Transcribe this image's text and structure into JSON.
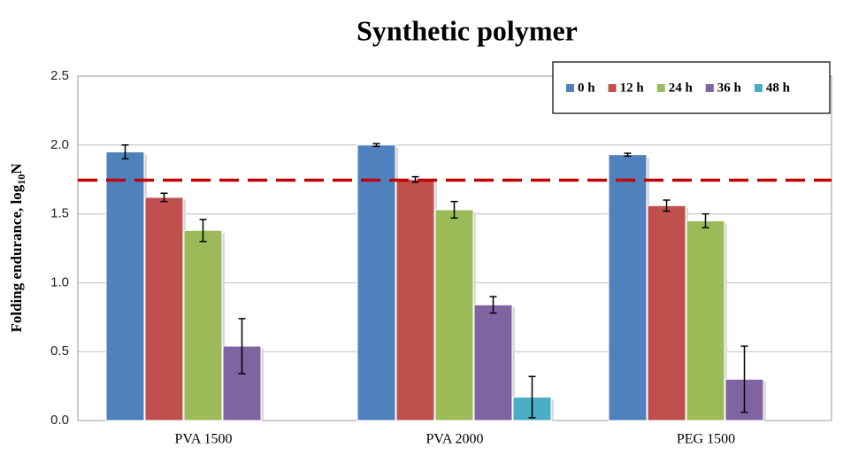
{
  "chart_data": {
    "type": "bar",
    "title": "Synthetic polymer",
    "y_label": [
      "Folding endurance, log",
      "10",
      "N"
    ],
    "categories": [
      "PVA 1500",
      "PVA 2000",
      "PEG 1500"
    ],
    "series": [
      {
        "name": "0 h",
        "color": "#4f81bd",
        "values": [
          1.95,
          2.0,
          1.93
        ],
        "errors": [
          0.05,
          0.01,
          0.01
        ]
      },
      {
        "name": "12 h",
        "color": "#c0504d",
        "values": [
          1.62,
          1.75,
          1.56
        ],
        "errors": [
          0.03,
          0.02,
          0.04
        ]
      },
      {
        "name": "24 h",
        "color": "#9bbb59",
        "values": [
          1.38,
          1.53,
          1.45
        ],
        "errors": [
          0.08,
          0.06,
          0.05
        ]
      },
      {
        "name": "36 h",
        "color": "#8064a2",
        "values": [
          0.54,
          0.84,
          0.3
        ],
        "errors": [
          0.2,
          0.06,
          0.24
        ]
      },
      {
        "name": "48 h",
        "color": "#4bacc6",
        "values": [
          null,
          0.17,
          null
        ],
        "errors": [
          null,
          0.15,
          null
        ]
      }
    ],
    "reference_line": {
      "value": 1.745,
      "color": "#c00000"
    },
    "ylim": [
      0,
      2.5
    ],
    "yticks": [
      {
        "value": 0,
        "label": "0.0"
      },
      {
        "value": 0.5,
        "label": "0.5"
      },
      {
        "value": 1,
        "label": "1.0"
      },
      {
        "value": 1.5,
        "label": "1.5"
      },
      {
        "value": 2,
        "label": "2.0"
      },
      {
        "value": 2.5,
        "label": "2.5"
      }
    ],
    "grid": true,
    "legend": "upper right"
  }
}
